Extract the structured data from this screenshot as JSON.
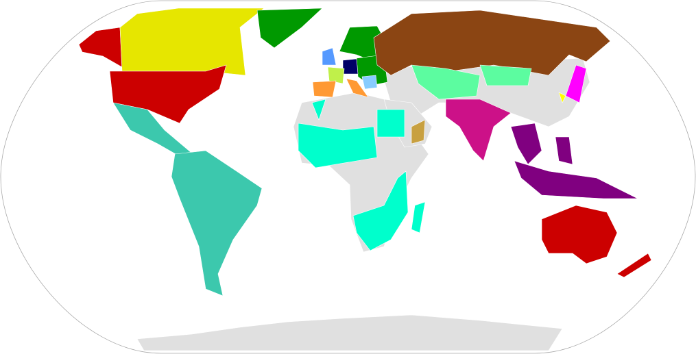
{
  "map": {
    "projection": "robinson",
    "ocean_color": "#ffffff",
    "border_color": "#aaaaaa",
    "default_land_color": "#e0e0e0",
    "regions": [
      {
        "id": "antarctica",
        "color": "#e0e0e0"
      },
      {
        "id": "asia-base",
        "color": "#e0e0e0"
      },
      {
        "id": "africa-base",
        "color": "#e0e0e0"
      },
      {
        "id": "arabia-base",
        "color": "#e0e0e0"
      },
      {
        "id": "alaska",
        "color": "#cc0000"
      },
      {
        "id": "canada",
        "color": "#e6e600"
      },
      {
        "id": "greenland",
        "color": "#009900"
      },
      {
        "id": "usa",
        "color": "#cc0000"
      },
      {
        "id": "mexico-central-america",
        "color": "#3cc8ad"
      },
      {
        "id": "south-america",
        "color": "#3cc8ad"
      },
      {
        "id": "scandinavia",
        "color": "#009900"
      },
      {
        "id": "eastern-europe",
        "color": "#009900"
      },
      {
        "id": "germany",
        "color": "#000066"
      },
      {
        "id": "uk",
        "color": "#5599ff"
      },
      {
        "id": "france",
        "color": "#c0f04a"
      },
      {
        "id": "iberia",
        "color": "#ff9933"
      },
      {
        "id": "italy",
        "color": "#ff9933"
      },
      {
        "id": "balkans",
        "color": "#88ccff"
      },
      {
        "id": "russia",
        "color": "#8b4513"
      },
      {
        "id": "central-asia",
        "color": "#5cfca0"
      },
      {
        "id": "mongolia",
        "color": "#5cfca0"
      },
      {
        "id": "west-africa",
        "color": "#00ffcc"
      },
      {
        "id": "north-africa",
        "color": "#00ffcc"
      },
      {
        "id": "egypt",
        "color": "#00ffcc"
      },
      {
        "id": "southern-africa",
        "color": "#00ffcc"
      },
      {
        "id": "madagascar",
        "color": "#00ffcc"
      },
      {
        "id": "oman",
        "color": "#c8a040"
      },
      {
        "id": "india",
        "color": "#cc1188"
      },
      {
        "id": "indochina",
        "color": "#800080"
      },
      {
        "id": "indonesia",
        "color": "#800080"
      },
      {
        "id": "philippines",
        "color": "#800080"
      },
      {
        "id": "japan",
        "color": "#ff00ff"
      },
      {
        "id": "korea",
        "color": "#ffff00"
      },
      {
        "id": "australia",
        "color": "#cc0000"
      },
      {
        "id": "new-zealand",
        "color": "#cc0000"
      }
    ]
  }
}
